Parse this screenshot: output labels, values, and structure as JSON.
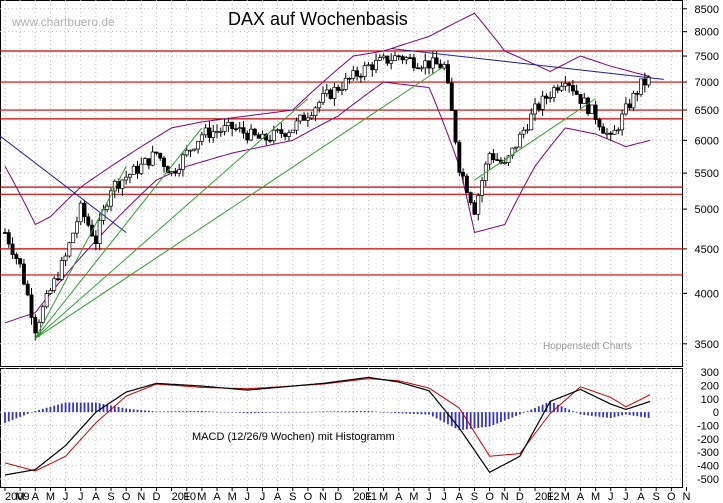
{
  "watermark": "www.chartbuero.de",
  "credit": "Hoppenstedt Charts",
  "colors": {
    "candle_up": "#ffffff",
    "candle_down": "#000000",
    "bollinger": "#800080",
    "support": "#cc0000",
    "trend_blue": "#1a1aa0",
    "trend_green": "#2ca02c",
    "macd_line": "#000000",
    "signal_line": "#cc0000",
    "histogram": "#3333cc"
  },
  "chart_data": [
    {
      "type": "candlestick",
      "title": "DAX auf Wochenbasis",
      "x_tick_labels": [
        "2009",
        "M",
        "A",
        "M",
        "J",
        "J",
        "A",
        "S",
        "O",
        "N",
        "D",
        "2010",
        "F",
        "M",
        "A",
        "M",
        "J",
        "J",
        "A",
        "S",
        "O",
        "N",
        "D",
        "2011",
        "F",
        "M",
        "A",
        "M",
        "J",
        "J",
        "A",
        "S",
        "O",
        "N",
        "D",
        "2012",
        "F",
        "M",
        "A",
        "M",
        "J",
        "J",
        "A",
        "S",
        "O",
        "N"
      ],
      "y_scale": "log",
      "ylim": [
        3300,
        8700
      ],
      "y_ticks": [
        3500,
        4000,
        4500,
        5000,
        5500,
        6000,
        6500,
        7000,
        7500,
        8000,
        8500
      ],
      "y_tick_labels": [
        "3500",
        "4000",
        "4500",
        "5000",
        "5500",
        "6000",
        "6500",
        "7000",
        "7500",
        "8000",
        "8500"
      ],
      "grid": true,
      "horizontal_levels": [
        7600,
        7000,
        6500,
        6350,
        5300,
        5200,
        4500,
        4200
      ],
      "close_path": [
        {
          "x": 0,
          "y": 4700
        },
        {
          "x": 1,
          "y": 4300
        },
        {
          "x": 2,
          "y": 3650
        },
        {
          "x": 4,
          "y": 4400
        },
        {
          "x": 5,
          "y": 5000
        },
        {
          "x": 6,
          "y": 4600
        },
        {
          "x": 7,
          "y": 5300
        },
        {
          "x": 9,
          "y": 5600
        },
        {
          "x": 10,
          "y": 5800
        },
        {
          "x": 11,
          "y": 5500
        },
        {
          "x": 13,
          "y": 6100
        },
        {
          "x": 15,
          "y": 6200
        },
        {
          "x": 17,
          "y": 6000
        },
        {
          "x": 19,
          "y": 6200
        },
        {
          "x": 21,
          "y": 6700
        },
        {
          "x": 23,
          "y": 7100
        },
        {
          "x": 24,
          "y": 7300
        },
        {
          "x": 26,
          "y": 7500
        },
        {
          "x": 27,
          "y": 7400
        },
        {
          "x": 29,
          "y": 7300
        },
        {
          "x": 30,
          "y": 5600
        },
        {
          "x": 31,
          "y": 5000
        },
        {
          "x": 32,
          "y": 5800
        },
        {
          "x": 33,
          "y": 5600
        },
        {
          "x": 35,
          "y": 6500
        },
        {
          "x": 37,
          "y": 7100
        },
        {
          "x": 38,
          "y": 6700
        },
        {
          "x": 39,
          "y": 6400
        },
        {
          "x": 40,
          "y": 6000
        },
        {
          "x": 41,
          "y": 6500
        },
        {
          "x": 42,
          "y": 6950
        },
        {
          "x": 42.6,
          "y": 7050
        }
      ],
      "upper_band": [
        {
          "x": 0,
          "y": 5600
        },
        {
          "x": 2,
          "y": 4800
        },
        {
          "x": 3,
          "y": 4900
        },
        {
          "x": 5,
          "y": 5300
        },
        {
          "x": 7,
          "y": 5600
        },
        {
          "x": 9,
          "y": 5900
        },
        {
          "x": 11,
          "y": 6200
        },
        {
          "x": 13,
          "y": 6300
        },
        {
          "x": 16,
          "y": 6400
        },
        {
          "x": 19,
          "y": 6500
        },
        {
          "x": 21,
          "y": 7000
        },
        {
          "x": 23,
          "y": 7500
        },
        {
          "x": 25,
          "y": 7600
        },
        {
          "x": 28,
          "y": 7900
        },
        {
          "x": 31,
          "y": 8400
        },
        {
          "x": 33,
          "y": 7600
        },
        {
          "x": 36,
          "y": 7200
        },
        {
          "x": 38,
          "y": 7500
        },
        {
          "x": 40,
          "y": 7300
        },
        {
          "x": 42.6,
          "y": 7100
        }
      ],
      "lower_band": [
        {
          "x": 0,
          "y": 3700
        },
        {
          "x": 2,
          "y": 3800
        },
        {
          "x": 4,
          "y": 4200
        },
        {
          "x": 6,
          "y": 4600
        },
        {
          "x": 8,
          "y": 5000
        },
        {
          "x": 10,
          "y": 5400
        },
        {
          "x": 12,
          "y": 5600
        },
        {
          "x": 15,
          "y": 5800
        },
        {
          "x": 19,
          "y": 6000
        },
        {
          "x": 22,
          "y": 6400
        },
        {
          "x": 25,
          "y": 7000
        },
        {
          "x": 28,
          "y": 6900
        },
        {
          "x": 30,
          "y": 5600
        },
        {
          "x": 31,
          "y": 4700
        },
        {
          "x": 33,
          "y": 4800
        },
        {
          "x": 35,
          "y": 5600
        },
        {
          "x": 37,
          "y": 6200
        },
        {
          "x": 39,
          "y": 6100
        },
        {
          "x": 41,
          "y": 5900
        },
        {
          "x": 42.6,
          "y": 6000
        }
      ],
      "trend_lines": [
        {
          "color": "blue",
          "from": {
            "x": -0.5,
            "y": 6100
          },
          "to": {
            "x": 8,
            "y": 4700
          }
        },
        {
          "color": "blue",
          "from": {
            "x": 25.5,
            "y": 7650
          },
          "to": {
            "x": 43.5,
            "y": 7050
          }
        },
        {
          "color": "green",
          "from": {
            "x": 2,
            "y": 3550
          },
          "to": {
            "x": 8,
            "y": 5600
          }
        },
        {
          "color": "green",
          "from": {
            "x": 2,
            "y": 3550
          },
          "to": {
            "x": 13,
            "y": 6200
          }
        },
        {
          "color": "green",
          "from": {
            "x": 2,
            "y": 3550
          },
          "to": {
            "x": 20,
            "y": 6700
          }
        },
        {
          "color": "green",
          "from": {
            "x": 2,
            "y": 3550
          },
          "to": {
            "x": 29,
            "y": 7300
          }
        },
        {
          "color": "green",
          "from": {
            "x": 31,
            "y": 5400
          },
          "to": {
            "x": 39,
            "y": 6700
          }
        }
      ]
    },
    {
      "type": "macd",
      "label": "MACD (12/26/9 Wochen) mit Histogramm",
      "ylim": [
        -560,
        330
      ],
      "y_ticks": [
        300,
        200,
        100,
        0,
        -100,
        -200,
        -300,
        -400,
        -500
      ],
      "y_tick_labels": [
        "300",
        "200",
        "100",
        "0",
        "-100",
        "-200",
        "-300",
        "-400",
        "-500"
      ],
      "macd_line": [
        {
          "x": 0,
          "y": -470
        },
        {
          "x": 2,
          "y": -430
        },
        {
          "x": 4,
          "y": -250
        },
        {
          "x": 6,
          "y": 0
        },
        {
          "x": 8,
          "y": 150
        },
        {
          "x": 10,
          "y": 215
        },
        {
          "x": 13,
          "y": 195
        },
        {
          "x": 16,
          "y": 165
        },
        {
          "x": 19,
          "y": 195
        },
        {
          "x": 21,
          "y": 215
        },
        {
          "x": 24,
          "y": 260
        },
        {
          "x": 26,
          "y": 225
        },
        {
          "x": 28,
          "y": 160
        },
        {
          "x": 30,
          "y": -120
        },
        {
          "x": 32,
          "y": -450
        },
        {
          "x": 34,
          "y": -330
        },
        {
          "x": 36,
          "y": 80
        },
        {
          "x": 38,
          "y": 170
        },
        {
          "x": 40,
          "y": 60
        },
        {
          "x": 41,
          "y": 20
        },
        {
          "x": 42.6,
          "y": 80
        }
      ],
      "signal_line": [
        {
          "x": 0,
          "y": -380
        },
        {
          "x": 2,
          "y": -440
        },
        {
          "x": 4,
          "y": -330
        },
        {
          "x": 6,
          "y": -80
        },
        {
          "x": 8,
          "y": 120
        },
        {
          "x": 10,
          "y": 210
        },
        {
          "x": 13,
          "y": 185
        },
        {
          "x": 16,
          "y": 175
        },
        {
          "x": 19,
          "y": 195
        },
        {
          "x": 21,
          "y": 210
        },
        {
          "x": 24,
          "y": 250
        },
        {
          "x": 26,
          "y": 235
        },
        {
          "x": 28,
          "y": 180
        },
        {
          "x": 30,
          "y": 30
        },
        {
          "x": 32,
          "y": -330
        },
        {
          "x": 34,
          "y": -310
        },
        {
          "x": 36,
          "y": -10
        },
        {
          "x": 38,
          "y": 190
        },
        {
          "x": 40,
          "y": 110
        },
        {
          "x": 41,
          "y": 40
        },
        {
          "x": 42.6,
          "y": 130
        }
      ]
    }
  ]
}
